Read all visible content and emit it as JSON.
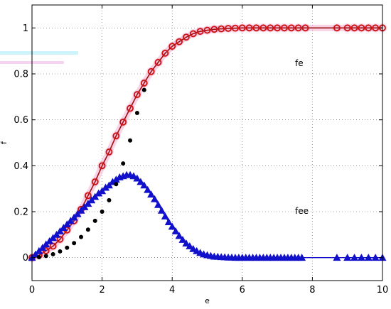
{
  "chart_data": {
    "type": "line",
    "xlabel": "e",
    "ylabel": "f",
    "xlim": [
      0,
      10
    ],
    "ylim": [
      -0.1,
      1.1
    ],
    "xticks": [
      "0",
      "2",
      "4",
      "6",
      "8",
      "10"
    ],
    "yticks": [
      "0",
      "0.2",
      "0.4",
      "0.6",
      "0.8",
      "1"
    ],
    "grid": true,
    "annotations": [
      "fe",
      "fee"
    ],
    "colors": {
      "red_line": "#a01010",
      "red_marker": "#cc1111",
      "red_glow": "#f2a0c8",
      "blue": "#1111cc",
      "black": "#000000"
    },
    "series": [
      {
        "marker": "circle-open",
        "style": "solid line with circle markers",
        "x": [
          0.0,
          0.2,
          0.4,
          0.6,
          0.8,
          1.0,
          1.2,
          1.4,
          1.6,
          1.8,
          2.0,
          2.2,
          2.4,
          2.6,
          2.8,
          3.0,
          3.2,
          3.4,
          3.6,
          3.8,
          4.0,
          4.2,
          4.4,
          4.6,
          4.8,
          5.0,
          5.2,
          5.4,
          5.6,
          5.8,
          6.0,
          6.2,
          6.4,
          6.6,
          6.8,
          7.0,
          7.2,
          7.4,
          7.6,
          7.8,
          8.7,
          9.0,
          9.2,
          9.4,
          9.6,
          9.8,
          10.0
        ],
        "y": [
          0.0,
          0.01,
          0.03,
          0.05,
          0.08,
          0.12,
          0.16,
          0.21,
          0.27,
          0.33,
          0.4,
          0.46,
          0.53,
          0.59,
          0.65,
          0.71,
          0.76,
          0.81,
          0.85,
          0.89,
          0.92,
          0.94,
          0.96,
          0.975,
          0.985,
          0.99,
          0.994,
          0.996,
          0.998,
          0.999,
          1.0,
          1.0,
          1.0,
          1.0,
          1.0,
          1.0,
          1.0,
          1.0,
          1.0,
          1.0,
          1.0,
          1.0,
          1.0,
          1.0,
          1.0,
          1.0,
          1.0
        ]
      },
      {
        "marker": "triangle",
        "style": "solid line with triangle markers",
        "x": [
          0.0,
          0.1,
          0.2,
          0.3,
          0.4,
          0.5,
          0.6,
          0.7,
          0.8,
          0.9,
          1.0,
          1.1,
          1.2,
          1.3,
          1.4,
          1.5,
          1.6,
          1.7,
          1.8,
          1.9,
          2.0,
          2.1,
          2.2,
          2.3,
          2.4,
          2.5,
          2.6,
          2.7,
          2.8,
          2.9,
          3.0,
          3.1,
          3.2,
          3.3,
          3.4,
          3.5,
          3.6,
          3.7,
          3.8,
          3.9,
          4.0,
          4.1,
          4.2,
          4.3,
          4.4,
          4.5,
          4.6,
          4.7,
          4.8,
          4.9,
          5.0,
          5.1,
          5.2,
          5.3,
          5.4,
          5.5,
          5.6,
          5.7,
          5.8,
          5.9,
          6.0,
          6.1,
          6.2,
          6.3,
          6.4,
          6.5,
          6.6,
          6.7,
          6.8,
          6.9,
          7.0,
          7.1,
          7.2,
          7.3,
          7.4,
          7.5,
          7.6,
          7.7,
          8.7,
          9.0,
          9.2,
          9.4,
          9.6,
          9.8,
          10.0
        ],
        "y": [
          0.0,
          0.014,
          0.029,
          0.043,
          0.058,
          0.072,
          0.086,
          0.1,
          0.115,
          0.13,
          0.145,
          0.16,
          0.175,
          0.19,
          0.205,
          0.22,
          0.235,
          0.25,
          0.265,
          0.28,
          0.29,
          0.305,
          0.315,
          0.33,
          0.34,
          0.35,
          0.355,
          0.36,
          0.36,
          0.355,
          0.345,
          0.33,
          0.315,
          0.295,
          0.275,
          0.255,
          0.23,
          0.205,
          0.18,
          0.155,
          0.135,
          0.115,
          0.095,
          0.078,
          0.062,
          0.05,
          0.038,
          0.029,
          0.021,
          0.015,
          0.011,
          0.008,
          0.005,
          0.004,
          0.003,
          0.002,
          0.001,
          0.001,
          0.0,
          0.0,
          0.0,
          0.0,
          0.0,
          0.0,
          0.0,
          0.0,
          0.0,
          0.0,
          0.0,
          0.0,
          0.0,
          0.0,
          0.0,
          0.0,
          0.0,
          0.0,
          0.0,
          0.0,
          0.0,
          0.0,
          0.0,
          0.0,
          0.0,
          0.0,
          0.0
        ]
      },
      {
        "marker": "dot",
        "style": "markers only",
        "x": [
          0.2,
          0.4,
          0.6,
          0.8,
          1.0,
          1.2,
          1.4,
          1.6,
          1.8,
          2.0,
          2.2,
          2.4,
          2.6,
          2.8,
          3.0,
          3.2
        ],
        "y": [
          0.002,
          0.007,
          0.015,
          0.027,
          0.043,
          0.063,
          0.09,
          0.122,
          0.16,
          0.2,
          0.25,
          0.32,
          0.41,
          0.51,
          0.63,
          0.73
        ]
      }
    ]
  }
}
